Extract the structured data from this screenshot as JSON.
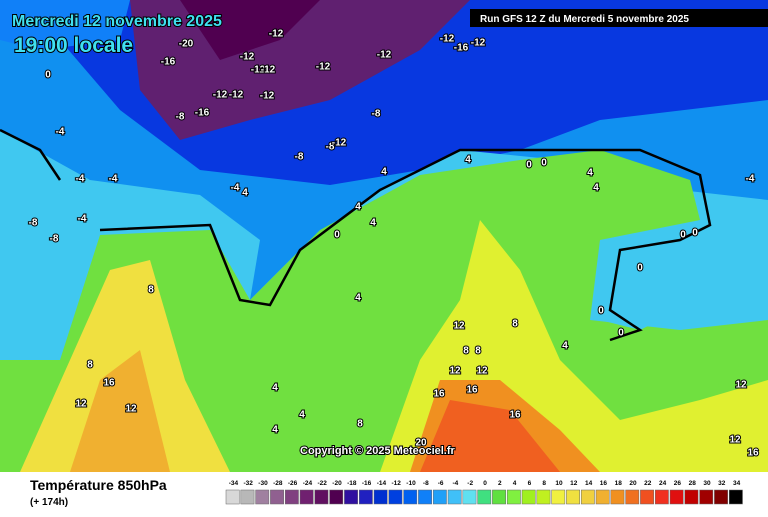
{
  "header": {
    "date": "Mercredi 12 novembre 2025",
    "time": "19:00 locale",
    "run": "Run GFS 12 Z du Mercredi 5 novembre 2025"
  },
  "footer": {
    "title": "Température 850hPa",
    "lead": "(+ 174h)",
    "copyright": "Copyright © 2025 Meteociel.fr"
  },
  "legend": {
    "values": [
      -34,
      -32,
      -30,
      -28,
      -26,
      -24,
      -22,
      -20,
      -18,
      -16,
      -14,
      -12,
      -10,
      -8,
      -6,
      -4,
      -2,
      0,
      2,
      4,
      6,
      8,
      10,
      12,
      14,
      16,
      18,
      20,
      22,
      24,
      26,
      28,
      30,
      32,
      34
    ],
    "colors": [
      "#d8d8d8",
      "#b8b8b8",
      "#a080a0",
      "#906090",
      "#804080",
      "#702070",
      "#601060",
      "#500050",
      "#3010a0",
      "#2020c0",
      "#0030d0",
      "#0040e0",
      "#0060f0",
      "#1080f8",
      "#20a0f8",
      "#40c0f8",
      "#60e0f0",
      "#40e080",
      "#60e040",
      "#80f040",
      "#a0f020",
      "#c0f020",
      "#f0f040",
      "#f0e040",
      "#f0d040",
      "#f0b030",
      "#f09020",
      "#f07020",
      "#f05020",
      "#f03020",
      "#e01010",
      "#c00000",
      "#a00000",
      "#800000",
      "#000000"
    ]
  },
  "map_labels": [
    -20,
    -12,
    -16,
    -12,
    -12,
    -12,
    -12,
    -12,
    -12,
    -16,
    -12,
    -12,
    -12,
    -12,
    -8,
    -16,
    -8,
    -8,
    -8,
    -12,
    0,
    -4,
    -4,
    -4,
    -8,
    -8,
    -4,
    -4,
    4,
    4,
    4,
    0,
    4,
    4,
    0,
    0,
    4,
    4,
    -4,
    0,
    0,
    0,
    0,
    0,
    8,
    4,
    12,
    8,
    4,
    8,
    8,
    12,
    12,
    16,
    12,
    12,
    8,
    16,
    16,
    16,
    4,
    4,
    4,
    8,
    20,
    12,
    12,
    16
  ]
}
